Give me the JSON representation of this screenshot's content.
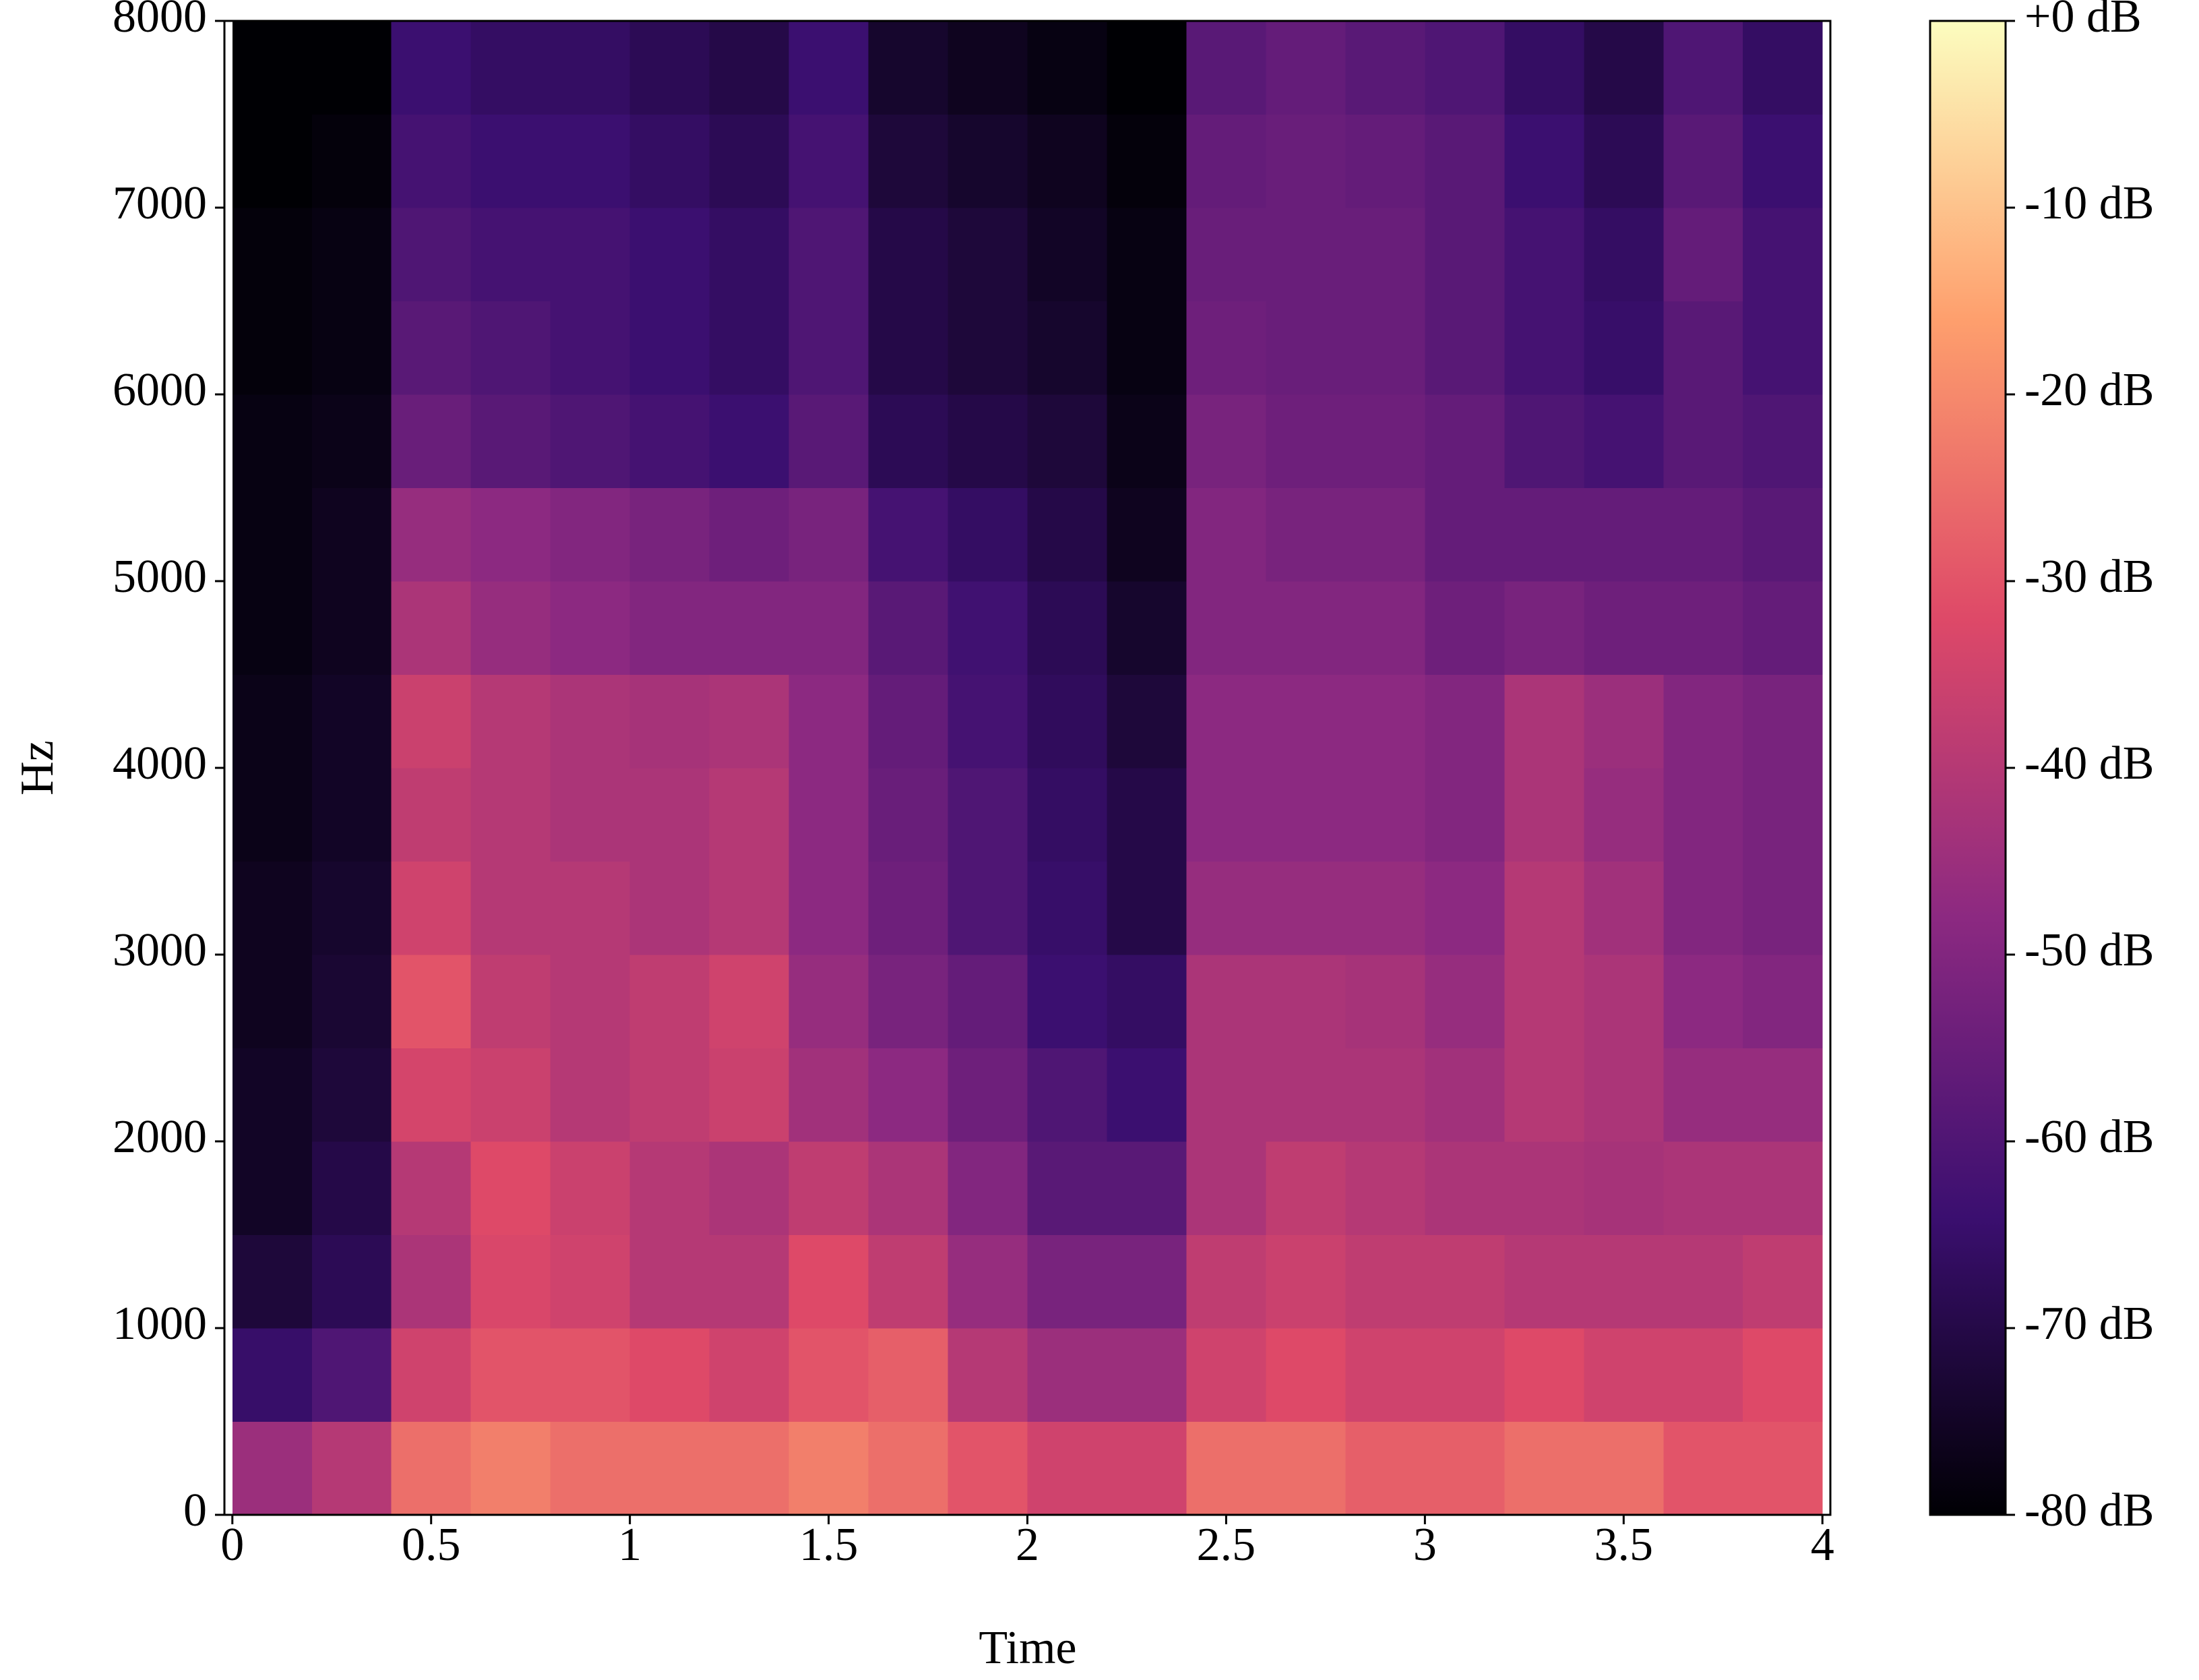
{
  "chart_data": {
    "type": "heatmap",
    "xlabel": "Time",
    "ylabel": "Hz",
    "xlim": [
      -0.02,
      4.02
    ],
    "xticks": [
      0,
      0.5,
      1,
      1.5,
      2,
      2.5,
      3,
      3.5,
      4
    ],
    "ylim": [
      0,
      8000
    ],
    "yticks": [
      0,
      1000,
      2000,
      3000,
      4000,
      5000,
      6000,
      7000,
      8000
    ],
    "xbins": [
      0,
      0.2,
      0.4,
      0.6,
      0.8,
      1,
      1.2,
      1.4,
      1.6,
      1.8,
      2,
      2.2,
      2.4,
      2.6,
      2.8,
      3,
      3.2,
      3.4,
      3.6,
      3.8,
      4
    ],
    "ybins": [
      0,
      500,
      1000,
      1500,
      2000,
      2500,
      3000,
      3500,
      4000,
      4500,
      5000,
      5500,
      6000,
      6500,
      7000,
      7500,
      8000
    ],
    "values": [
      [
        -45,
        -40,
        -25,
        -22,
        -25,
        -25,
        -25,
        -22,
        -25,
        -30,
        -35,
        -35,
        -25,
        -25,
        -28,
        -28,
        -25,
        -25,
        -30,
        -30
      ],
      [
        -65,
        -60,
        -35,
        -30,
        -30,
        -32,
        -35,
        -30,
        -28,
        -40,
        -45,
        -45,
        -35,
        -32,
        -35,
        -35,
        -32,
        -35,
        -35,
        -32
      ],
      [
        -72,
        -68,
        -42,
        -33,
        -35,
        -40,
        -40,
        -32,
        -38,
        -46,
        -52,
        -52,
        -38,
        -36,
        -38,
        -38,
        -40,
        -40,
        -40,
        -38
      ],
      [
        -75,
        -70,
        -40,
        -32,
        -36,
        -40,
        -42,
        -38,
        -42,
        -50,
        -58,
        -58,
        -42,
        -38,
        -40,
        -42,
        -42,
        -43,
        -42,
        -42
      ],
      [
        -75,
        -72,
        -34,
        -36,
        -40,
        -38,
        -36,
        -44,
        -48,
        -54,
        -60,
        -64,
        -42,
        -42,
        -42,
        -44,
        -40,
        -42,
        -46,
        -46
      ],
      [
        -76,
        -73,
        -30,
        -38,
        -40,
        -38,
        -35,
        -46,
        -52,
        -56,
        -64,
        -66,
        -42,
        -42,
        -43,
        -46,
        -40,
        -42,
        -48,
        -50
      ],
      [
        -76,
        -74,
        -35,
        -40,
        -40,
        -42,
        -40,
        -48,
        -54,
        -60,
        -65,
        -70,
        -46,
        -46,
        -46,
        -48,
        -40,
        -44,
        -50,
        -52
      ],
      [
        -77,
        -75,
        -38,
        -40,
        -42,
        -42,
        -40,
        -48,
        -55,
        -60,
        -66,
        -70,
        -48,
        -48,
        -48,
        -50,
        -42,
        -46,
        -50,
        -52
      ],
      [
        -77,
        -75,
        -36,
        -40,
        -42,
        -43,
        -42,
        -48,
        -56,
        -62,
        -67,
        -72,
        -48,
        -48,
        -48,
        -50,
        -42,
        -45,
        -50,
        -52
      ],
      [
        -78,
        -76,
        -42,
        -46,
        -48,
        -50,
        -50,
        -50,
        -58,
        -63,
        -68,
        -74,
        -50,
        -50,
        -50,
        -54,
        -52,
        -54,
        -54,
        -56
      ],
      [
        -78,
        -76,
        -46,
        -48,
        -50,
        -52,
        -54,
        -52,
        -62,
        -66,
        -70,
        -76,
        -50,
        -52,
        -52,
        -56,
        -56,
        -56,
        -56,
        -58
      ],
      [
        -78,
        -77,
        -55,
        -58,
        -60,
        -62,
        -64,
        -58,
        -68,
        -70,
        -72,
        -77,
        -52,
        -54,
        -54,
        -56,
        -60,
        -62,
        -58,
        -60
      ],
      [
        -79,
        -78,
        -58,
        -60,
        -62,
        -64,
        -66,
        -60,
        -70,
        -72,
        -74,
        -78,
        -54,
        -55,
        -55,
        -58,
        -62,
        -65,
        -58,
        -62
      ],
      [
        -79,
        -78,
        -60,
        -62,
        -62,
        -64,
        -66,
        -60,
        -70,
        -72,
        -75,
        -78,
        -55,
        -55,
        -55,
        -58,
        -62,
        -66,
        -56,
        -62
      ],
      [
        -80,
        -79,
        -62,
        -64,
        -64,
        -66,
        -68,
        -62,
        -72,
        -74,
        -76,
        -79,
        -56,
        -55,
        -56,
        -58,
        -64,
        -68,
        -58,
        -64
      ],
      [
        -80,
        -80,
        -64,
        -66,
        -66,
        -68,
        -70,
        -64,
        -74,
        -76,
        -78,
        -80,
        -58,
        -56,
        -58,
        -60,
        -66,
        -70,
        -60,
        -66
      ]
    ],
    "colormap": [
      "#000004",
      "#3b0f70",
      "#8c2981",
      "#de4968",
      "#fe9f6d",
      "#fcfdbf"
    ],
    "colorbar": {
      "lim": [
        -80,
        0
      ],
      "ticks": [
        {
          "value": 0,
          "label": "+0 dB"
        },
        {
          "value": -10,
          "label": "-10 dB"
        },
        {
          "value": -20,
          "label": "-20 dB"
        },
        {
          "value": -30,
          "label": "-30 dB"
        },
        {
          "value": -40,
          "label": "-40 dB"
        },
        {
          "value": -50,
          "label": "-50 dB"
        },
        {
          "value": -60,
          "label": "-60 dB"
        },
        {
          "value": -70,
          "label": "-70 dB"
        },
        {
          "value": -80,
          "label": "-80 dB"
        }
      ]
    }
  }
}
